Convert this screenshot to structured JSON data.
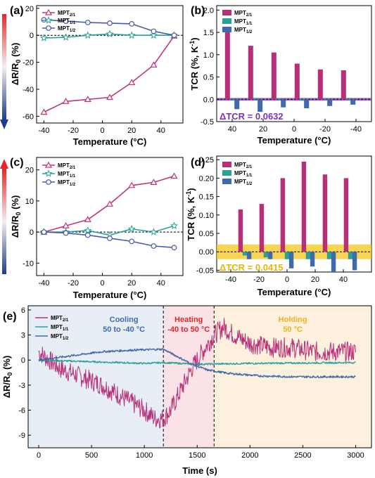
{
  "chart_data": [
    {
      "panel": "(a)",
      "type": "line",
      "xlabel": "Temperature (°C)",
      "ylabel": "ΔR/R₀ (%)",
      "xlim": [
        -45,
        55
      ],
      "ylim": [
        -65,
        22
      ],
      "xticks": [
        -40,
        -20,
        0,
        20,
        40
      ],
      "yticks": [
        -60,
        -40,
        -20,
        0,
        20
      ],
      "x": [
        -40,
        -25,
        -10,
        5,
        20,
        35,
        49
      ],
      "series": [
        {
          "name": "MPT2/1",
          "sub": "2/1",
          "color": "#c2357a",
          "marker": "triangle",
          "values": [
            -57,
            -49,
            -47.5,
            -46,
            -35,
            -22,
            -0.5
          ]
        },
        {
          "name": "MPT1/1",
          "sub": "1/1",
          "color": "#2aa198",
          "marker": "star",
          "values": [
            -2,
            -1.5,
            0,
            1,
            0,
            0,
            0
          ]
        },
        {
          "name": "MPT1/2",
          "sub": "1/2",
          "color": "#4a5aa8",
          "marker": "circle",
          "values": [
            11.5,
            10.5,
            9.5,
            9,
            8.5,
            3,
            0
          ]
        }
      ],
      "legend_position": "top-left",
      "grid": false
    },
    {
      "panel": "(b)",
      "type": "bar",
      "xlabel": "Temperature (°C)",
      "ylabel": "TCR (%, K⁻¹)",
      "reversed_x": true,
      "xlim": [
        50,
        -50
      ],
      "ylim": [
        -0.5,
        2.1
      ],
      "xticks": [
        40,
        20,
        0,
        -20,
        -40
      ],
      "yticks": [
        -0.5,
        0.0,
        0.5,
        1.0,
        1.5,
        2.0
      ],
      "categories": [
        40,
        25,
        10,
        -5,
        -20,
        -35
      ],
      "series": [
        {
          "name": "MPT2/1",
          "sub": "2/1",
          "color": "#b72f78",
          "values": [
            1.5,
            1.2,
            1.05,
            0.8,
            0.67,
            0.65
          ]
        },
        {
          "name": "MPT1/1",
          "sub": "1/1",
          "color": "#2aa198",
          "values": [
            -0.02,
            0.03,
            0.02,
            -0.03,
            0.0,
            0.0
          ]
        },
        {
          "name": "MPT1/2",
          "sub": "1/2",
          "color": "#3f6aad",
          "values": [
            -0.22,
            -0.28,
            -0.18,
            -0.2,
            -0.15,
            -0.12
          ]
        }
      ],
      "band": {
        "from": -0.03,
        "to": 0.03,
        "color": "#7b2fbe"
      },
      "annotation": {
        "text": "ΔTCR = 0.0632",
        "color": "#7b2fbe"
      },
      "legend_position": "top-left"
    },
    {
      "panel": "(c)",
      "type": "line",
      "xlabel": "Temperature (°C)",
      "ylabel": "ΔR/R₀ (%)",
      "xlim": [
        -45,
        55
      ],
      "ylim": [
        -14,
        24
      ],
      "xticks": [
        -40,
        -20,
        0,
        20,
        40
      ],
      "yticks": [
        -10,
        0,
        10,
        20
      ],
      "x": [
        -40,
        -25,
        -10,
        5,
        20,
        35,
        49
      ],
      "series": [
        {
          "name": "MPT2/1",
          "sub": "2/1",
          "color": "#c2357a",
          "marker": "triangle",
          "values": [
            0,
            2,
            4,
            9,
            15,
            16,
            18
          ]
        },
        {
          "name": "MPT1/1",
          "sub": "1/1",
          "color": "#2aa198",
          "marker": "star",
          "values": [
            0,
            0,
            0.5,
            -1,
            1,
            0,
            2
          ]
        },
        {
          "name": "MPT1/2",
          "sub": "1/2",
          "color": "#4a5aa8",
          "marker": "circle",
          "values": [
            0,
            -0.3,
            -1,
            -2,
            -3,
            -4.5,
            -5
          ]
        }
      ],
      "legend_position": "top-left",
      "grid": false
    },
    {
      "panel": "(d)",
      "type": "bar",
      "xlabel": "Temperature (°C)",
      "ylabel": "TCR (%, K⁻¹)",
      "xlim": [
        -50,
        60
      ],
      "ylim": [
        -0.055,
        0.26
      ],
      "xticks": [
        -40,
        -20,
        0,
        20,
        40
      ],
      "yticks": [
        -0.05,
        0.0,
        0.05,
        0.1,
        0.15,
        0.2,
        0.25
      ],
      "categories": [
        -30,
        -15,
        0,
        15,
        30,
        45
      ],
      "series": [
        {
          "name": "MPT2/1",
          "sub": "2/1",
          "color": "#b72f78",
          "values": [
            0.115,
            0.13,
            0.2,
            0.245,
            0.21,
            0.2
          ]
        },
        {
          "name": "MPT1/1",
          "sub": "1/1",
          "color": "#2aa198",
          "values": [
            -0.01,
            -0.015,
            -0.02,
            -0.02,
            -0.02,
            -0.02
          ]
        },
        {
          "name": "MPT1/2",
          "sub": "1/2",
          "color": "#3f6aad",
          "values": [
            -0.02,
            -0.02,
            -0.045,
            -0.04,
            -0.055,
            -0.05
          ]
        }
      ],
      "band": {
        "from": -0.02,
        "to": 0.02,
        "color": "#f5c518"
      },
      "annotation": {
        "text": "ΔTCR = 0.0415",
        "color": "#e5b800"
      },
      "legend_position": "top-left"
    },
    {
      "panel": "(e)",
      "type": "line",
      "xlabel": "Time (s)",
      "ylabel": "ΔR/R₀ (%)",
      "xlim": [
        -100,
        3150
      ],
      "ylim": [
        -10.5,
        6.5
      ],
      "xticks": [
        0,
        500,
        1000,
        1500,
        2000,
        2500,
        3000
      ],
      "yticks": [
        -9,
        -6,
        -3,
        0,
        3,
        6
      ],
      "regions": [
        {
          "from": -100,
          "to": 1180,
          "color": "#e8eef6",
          "label1": "Cooling",
          "label2": "50 to -40 °C",
          "text_color": "#3f6aad"
        },
        {
          "from": 1180,
          "to": 1660,
          "color": "#fbe2e6",
          "label1": "Heating",
          "label2": "-40 to 50 °C",
          "text_color": "#e0242b"
        },
        {
          "from": 1660,
          "to": 3150,
          "color": "#fdf1de",
          "label1": "Holding",
          "label2": "50 °C",
          "text_color": "#f2b31c"
        }
      ],
      "series": [
        {
          "name": "MPT2/1",
          "sub": "2/1",
          "color": "#b72f78",
          "noise": 1.2,
          "x": [
            0,
            100,
            200,
            400,
            600,
            800,
            1000,
            1100,
            1180,
            1250,
            1350,
            1450,
            1550,
            1660,
            1750,
            1850,
            2000,
            2200,
            2400,
            2600,
            2800,
            3000
          ],
          "values": [
            1,
            0,
            -1,
            -2,
            -3,
            -4.5,
            -6,
            -7,
            -7,
            -6,
            -3.5,
            -1,
            1,
            3,
            4,
            3,
            2,
            1.5,
            1.5,
            1,
            1,
            1
          ]
        },
        {
          "name": "MPT1/1",
          "sub": "1/1",
          "color": "#2aa198",
          "noise": 0.1,
          "x": [
            0,
            500,
            1000,
            1180,
            1500,
            2000,
            3000
          ],
          "values": [
            0,
            -0.2,
            -0.4,
            -0.3,
            -0.5,
            -0.4,
            -0.3
          ]
        },
        {
          "name": "MPT1/2",
          "sub": "1/2",
          "color": "#3f6aad",
          "noise": 0.12,
          "x": [
            0,
            300,
            600,
            900,
            1180,
            1300,
            1450,
            1600,
            1800,
            2100,
            2400,
            2700,
            3000
          ],
          "values": [
            0,
            0.5,
            1,
            1.2,
            1.3,
            0.5,
            -0.5,
            -1.2,
            -1.6,
            -1.9,
            -2,
            -2,
            -2
          ]
        }
      ],
      "legend_position": "top-left"
    }
  ]
}
